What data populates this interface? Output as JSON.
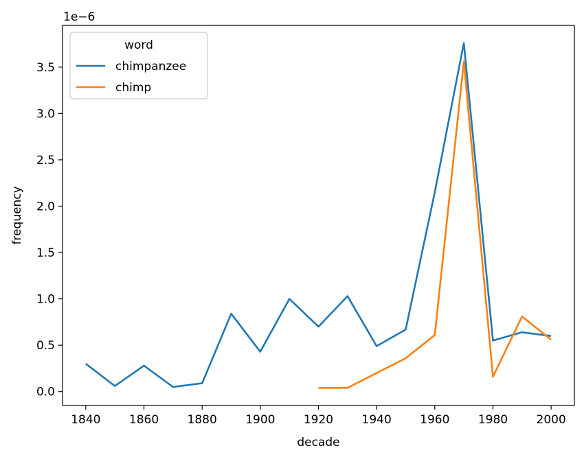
{
  "chart_data": {
    "type": "line",
    "xlabel": "decade",
    "ylabel": "frequency",
    "offset_label": "1e−6",
    "xlim": [
      1832,
      2008
    ],
    "ylim": [
      -0.15,
      3.95
    ],
    "x_ticks": [
      1840,
      1860,
      1880,
      1900,
      1920,
      1940,
      1960,
      1980,
      2000
    ],
    "x_tick_labels": [
      "1840",
      "1860",
      "1880",
      "1900",
      "1920",
      "1940",
      "1960",
      "1980",
      "2000"
    ],
    "y_ticks": [
      0,
      0.5,
      1.0,
      1.5,
      2.0,
      2.5,
      3.0,
      3.5
    ],
    "y_tick_labels": [
      "0.0",
      "0.5",
      "1.0",
      "1.5",
      "2.0",
      "2.5",
      "3.0",
      "3.5"
    ],
    "grid": false,
    "legend": {
      "title": "word",
      "placement": "top-left"
    },
    "series": [
      {
        "name": "chimpanzee",
        "color": "#1f77b4",
        "x": [
          1840,
          1850,
          1860,
          1870,
          1880,
          1890,
          1900,
          1910,
          1920,
          1930,
          1940,
          1950,
          1960,
          1970,
          1980,
          1990,
          2000
        ],
        "values": [
          0.3,
          0.06,
          0.28,
          0.05,
          0.09,
          0.84,
          0.43,
          1.0,
          0.7,
          1.03,
          0.49,
          0.67,
          2.15,
          3.76,
          0.55,
          0.64,
          0.6
        ]
      },
      {
        "name": "chimp",
        "color": "#ff7f0e",
        "x": [
          1920,
          1930,
          1940,
          1950,
          1960,
          1970,
          1980,
          1990,
          2000
        ],
        "values": [
          0.04,
          0.04,
          0.2,
          0.36,
          0.61,
          3.56,
          0.16,
          0.81,
          0.56
        ]
      }
    ]
  }
}
